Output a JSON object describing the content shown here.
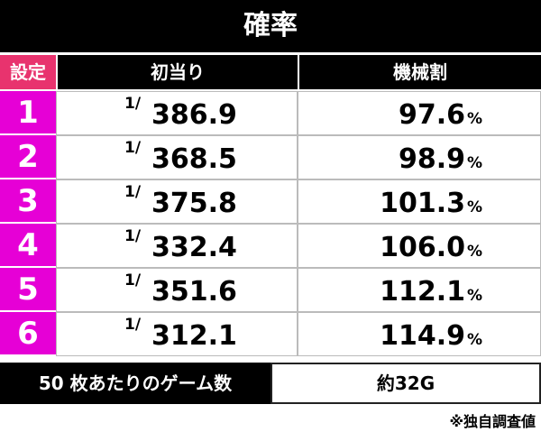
{
  "title": "確率",
  "table": {
    "header": [
      "設定",
      "初当り",
      "機械割"
    ],
    "rows": [
      [
        "1",
        "1/",
        "386.9",
        "97.6",
        "%"
      ],
      [
        "2",
        "1/",
        "368.5",
        "98.9",
        "%"
      ],
      [
        "3",
        "1/",
        "375.8",
        "101.3",
        "%"
      ],
      [
        "4",
        "1/",
        "332.4",
        "106.0",
        "%"
      ],
      [
        "5",
        "1/",
        "351.6",
        "112.1",
        "%"
      ],
      [
        "6",
        "1/",
        "312.1",
        "114.9",
        "%"
      ]
    ]
  },
  "footer": {
    "label": "50 枚あたりのゲーム数",
    "value": "約32G",
    "note": "※独自調査値"
  }
}
